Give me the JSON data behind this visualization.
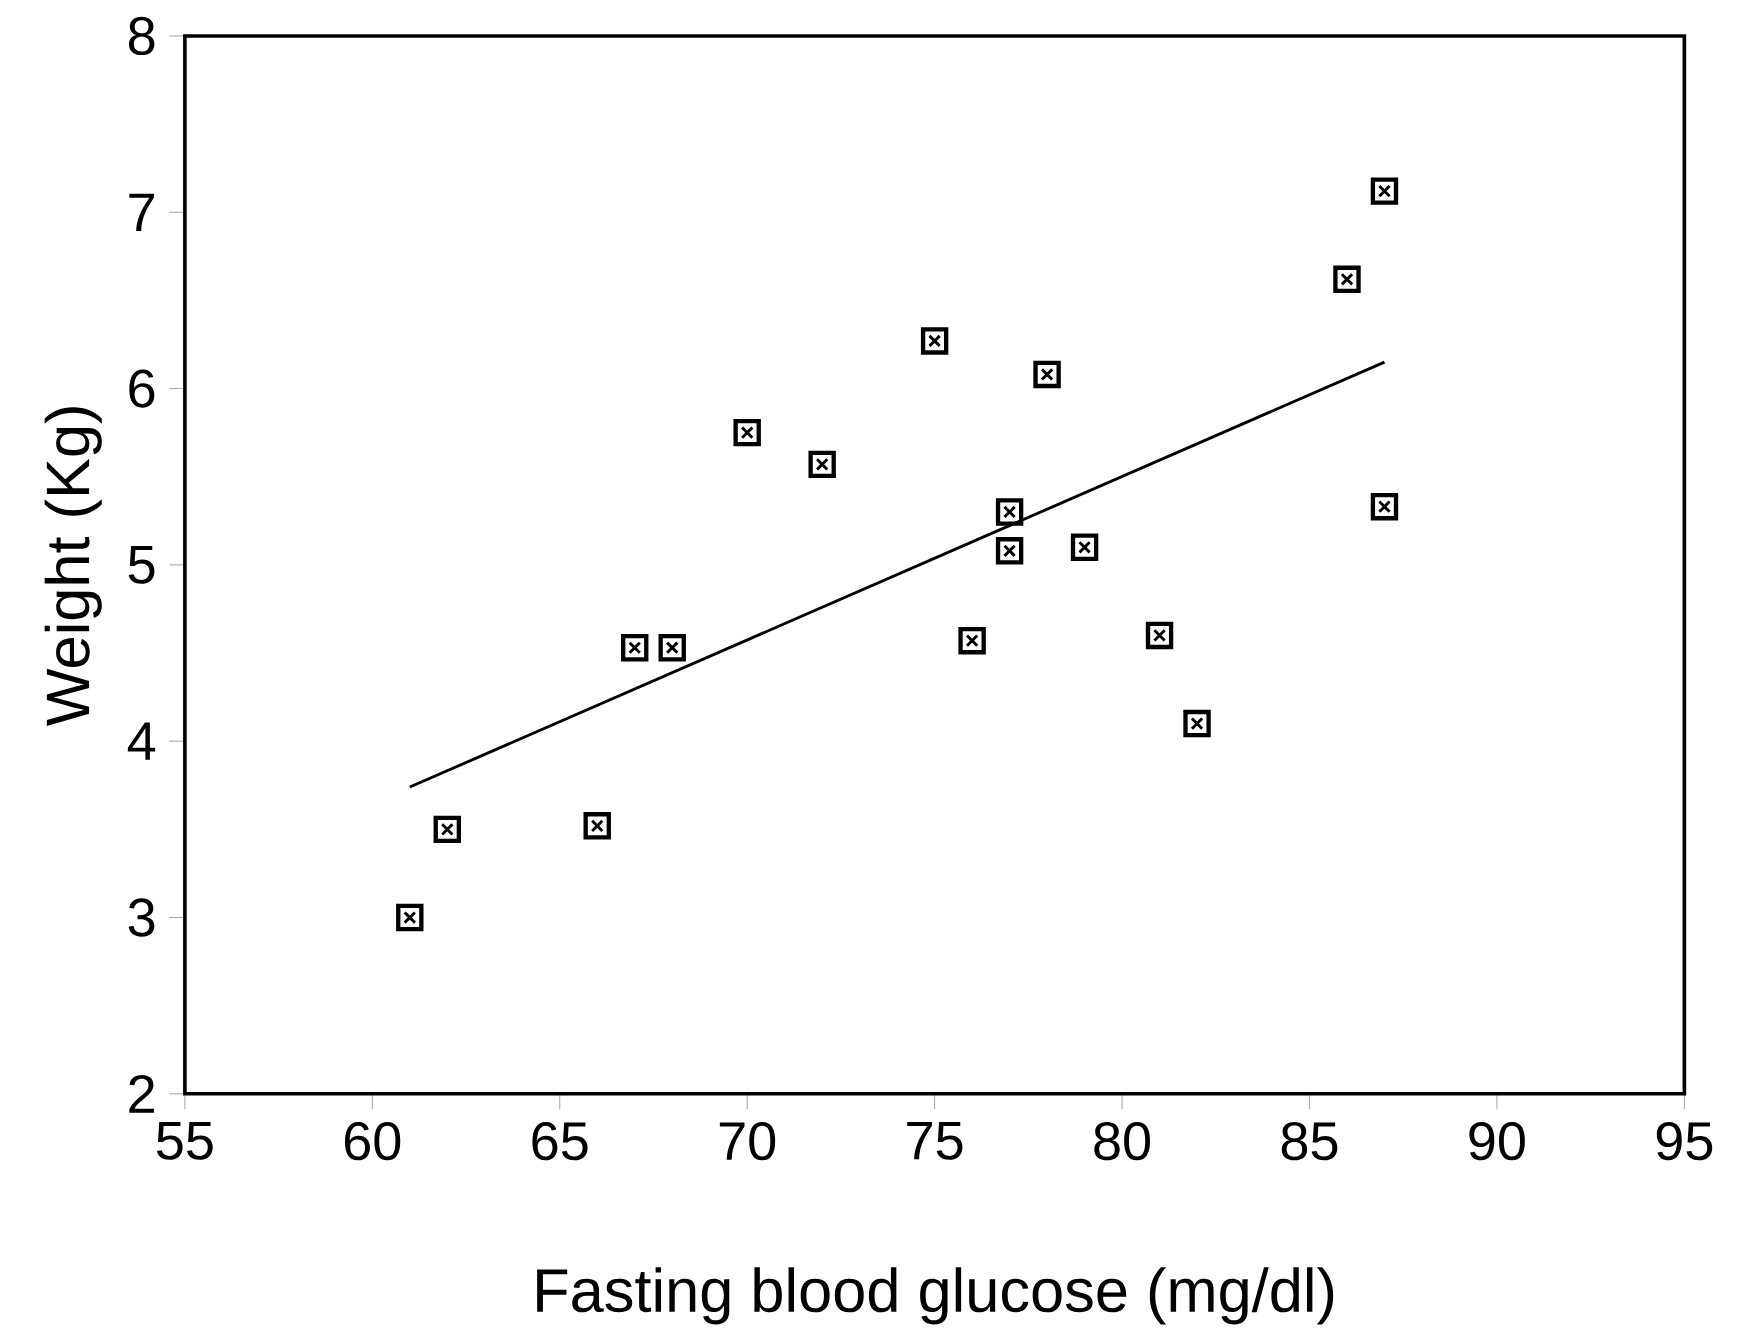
{
  "chart_data": {
    "type": "scatter",
    "xlabel": "Fasting blood glucose (mg/dl)",
    "ylabel": "Weight (Kg)",
    "xlim": [
      55,
      95
    ],
    "xticks": [
      55,
      60,
      65,
      70,
      75,
      80,
      85,
      90,
      95
    ],
    "ylim": [
      2,
      8
    ],
    "yticks": [
      2,
      3,
      4,
      5,
      6,
      7,
      8
    ],
    "grid": false,
    "series": [
      {
        "color": "#000000",
        "marker": "square",
        "x": [
          61,
          62,
          66,
          67,
          68,
          70,
          72,
          75,
          76,
          77,
          77,
          78,
          79,
          81,
          82,
          86,
          87,
          87
        ],
        "values": [
          3.0,
          3.5,
          3.52,
          4.53,
          4.53,
          5.75,
          5.57,
          6.27,
          4.57,
          5.3,
          5.08,
          6.08,
          5.1,
          4.6,
          4.1,
          6.62,
          7.12,
          5.33
        ]
      },
      {
        "type": "line",
        "color": "#000000",
        "x": [
          61,
          87
        ],
        "values": [
          3.74,
          6.15
        ]
      }
    ]
  }
}
